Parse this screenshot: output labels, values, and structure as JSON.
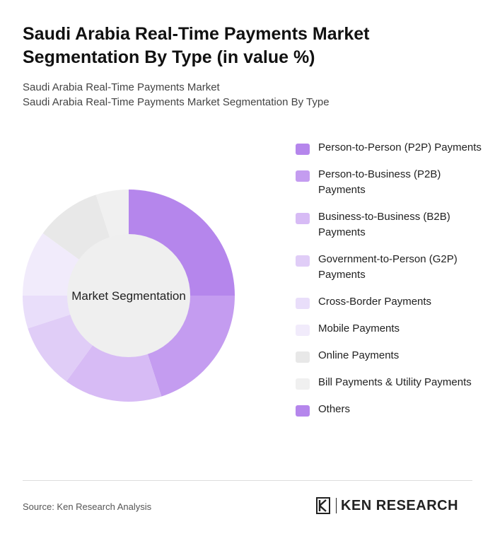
{
  "header": {
    "title": "Saudi Arabia Real-Time Payments Market Segmentation By Type (in value %)",
    "subtitle_line1": "Saudi Arabia Real-Time Payments Market",
    "subtitle_line2": "Saudi Arabia Real-Time Payments Market Segmentation By Type"
  },
  "chart_data": {
    "type": "pie",
    "center_label": "Market Segmentation",
    "categories": [
      "Person-to-Person (P2P) Payments",
      "Person-to-Business (P2B) Payments",
      "Business-to-Business (B2B) Payments",
      "Government-to-Person (G2P) Payments",
      "Cross-Border Payments",
      "Mobile Payments",
      "Online Payments",
      "Bill Payments & Utility Payments",
      "Others"
    ],
    "values": [
      25,
      20,
      15,
      10,
      5,
      10,
      10,
      5,
      0
    ],
    "colors": [
      "#b586ec",
      "#c49cf0",
      "#d7bbf5",
      "#e0cdf7",
      "#e9defa",
      "#f1ebfb",
      "#e8e8e8",
      "#f0f0f0",
      "#b586ec"
    ],
    "legend_position": "right"
  },
  "footer": {
    "source": "Source: Ken Research Analysis",
    "logo_text": "KEN RESEARCH"
  }
}
